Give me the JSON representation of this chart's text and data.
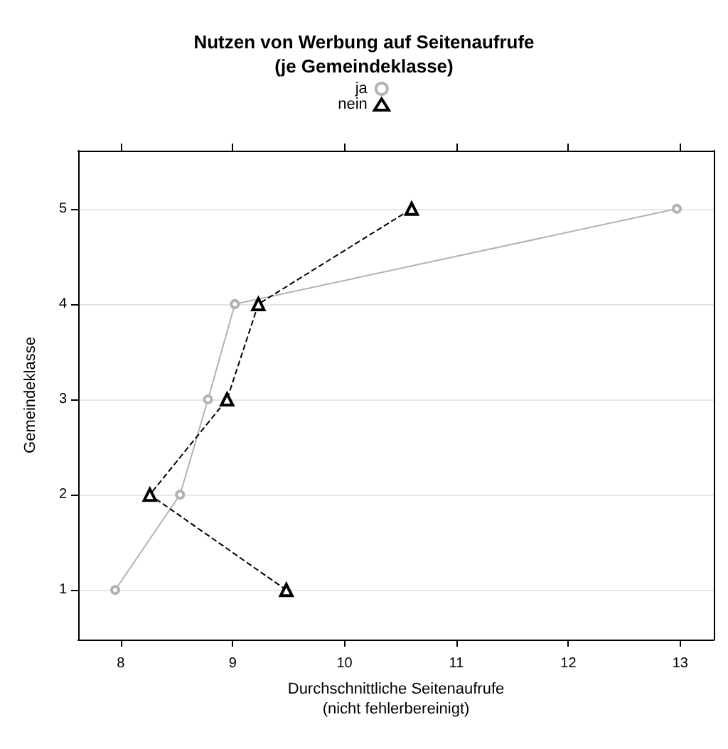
{
  "chart_data": {
    "type": "line",
    "title": "Nutzen von Werbung auf Seitenaufrufe\n(je Gemeindeklasse)",
    "xlabel": "Durchschnittliche Seitenaufrufe\n(nicht fehlerbereinigt)",
    "ylabel": "Gemeindeklasse",
    "series": [
      {
        "name": "ja",
        "color": "#b3b3b3",
        "marker": "circle",
        "line_style": "solid",
        "x": [
          7.95,
          8.53,
          8.78,
          9.02,
          12.97
        ],
        "values": [
          1,
          2,
          3,
          4,
          5
        ]
      },
      {
        "name": "nein",
        "color": "#000000",
        "marker": "triangle",
        "line_style": "dashed",
        "x": [
          9.48,
          8.26,
          8.95,
          9.23,
          10.6
        ],
        "values": [
          1,
          2,
          3,
          4,
          5
        ]
      }
    ],
    "xlim": [
      7.62,
      13.3
    ],
    "xticks": [
      8,
      9,
      10,
      11,
      12,
      13
    ],
    "ylim": [
      0.48,
      5.61
    ],
    "yticks": [
      1,
      2,
      3,
      4,
      5
    ],
    "grid": "y",
    "legend": "top"
  }
}
